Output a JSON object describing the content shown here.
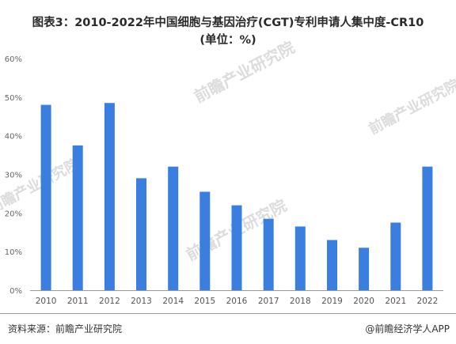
{
  "title_line1": "图表3：2010-2022年中国细胞与基因治疗(CGT)专利申请人集中度-CR10",
  "title_line2": "(单位：%)",
  "source": "资料来源：前瞻产业研究院",
  "credit": "@前瞻经济学人APP",
  "watermark": "前瞻产业研究院",
  "colors": {
    "bar": "#3a7ee0",
    "axis": "#999999",
    "text": "#666666"
  },
  "chart_data": {
    "type": "bar",
    "categories": [
      "2010",
      "2011",
      "2012",
      "2013",
      "2014",
      "2015",
      "2016",
      "2017",
      "2018",
      "2019",
      "2020",
      "2021",
      "2022"
    ],
    "values": [
      48,
      37.5,
      48.5,
      29,
      32,
      25.5,
      22,
      18.5,
      16.5,
      13,
      11,
      17.5,
      32
    ],
    "ylim": [
      0,
      60
    ],
    "yticks": [
      0,
      10,
      20,
      30,
      40,
      50,
      60
    ],
    "ytick_labels": [
      "0%",
      "10%",
      "20%",
      "30%",
      "40%",
      "50%",
      "60%"
    ],
    "xlabel": "",
    "ylabel": "",
    "grid": false,
    "legend": "none"
  }
}
